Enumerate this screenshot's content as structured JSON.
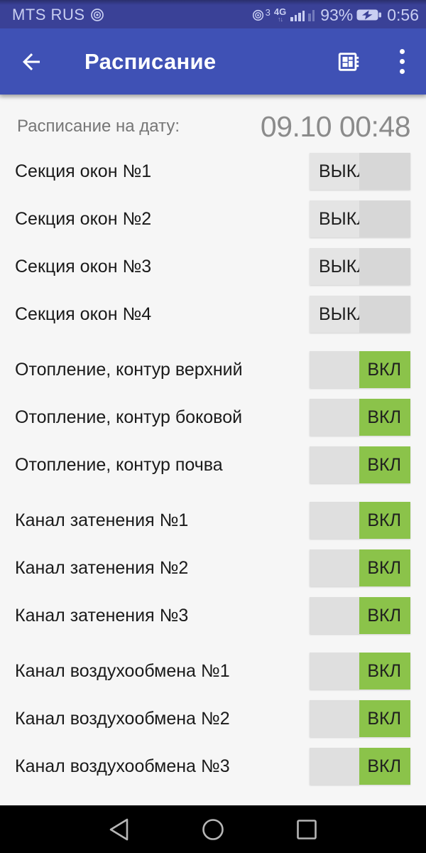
{
  "status_bar": {
    "carrier": "MTS RUS",
    "signal_sup": "3",
    "network": "4G",
    "network_arrows": "↑↓",
    "battery_percent": "93%",
    "time": "0:56"
  },
  "app_bar": {
    "title": "Расписание"
  },
  "schedule": {
    "header_label": "Расписание на дату:",
    "header_value": "09.10 00:48",
    "on_text": "ВКЛ",
    "off_text": "ВЫКЛ",
    "sections": [
      {
        "rows": [
          {
            "label": "Секция окон №1",
            "state": "off"
          },
          {
            "label": "Секция окон №2",
            "state": "off"
          },
          {
            "label": "Секция окон №3",
            "state": "off"
          },
          {
            "label": "Секция окон №4",
            "state": "off"
          }
        ]
      },
      {
        "rows": [
          {
            "label": "Отопление, контур верхний",
            "state": "on"
          },
          {
            "label": "Отопление, контур боковой",
            "state": "on"
          },
          {
            "label": "Отопление, контур почва",
            "state": "on"
          }
        ]
      },
      {
        "rows": [
          {
            "label": "Канал затенения №1",
            "state": "on"
          },
          {
            "label": "Канал затенения №2",
            "state": "on"
          },
          {
            "label": "Канал затенения №3",
            "state": "on"
          }
        ]
      },
      {
        "rows": [
          {
            "label": "Канал воздухообмена №1",
            "state": "on"
          },
          {
            "label": "Канал воздухообмена №2",
            "state": "on"
          },
          {
            "label": "Канал воздухообмена №3",
            "state": "on"
          }
        ]
      }
    ]
  },
  "icons": {
    "volte": "hd-voice-circle",
    "battery": "battery-charging",
    "app_bar_left": "arrow-back",
    "app_bar_right_1": "developer-board",
    "app_bar_right_2": "more-vert",
    "nav": [
      "back-triangle",
      "home-circle",
      "recents-square"
    ]
  },
  "colors": {
    "status_bar": "#3A4197",
    "app_bar": "#3F51B5",
    "content_bg": "#F6F6F6",
    "on_green": "#8BC34A",
    "toggle_gray_light": "#E4E4E4",
    "toggle_gray_dark": "#D7D7D7",
    "nav_bar": "#000000"
  }
}
